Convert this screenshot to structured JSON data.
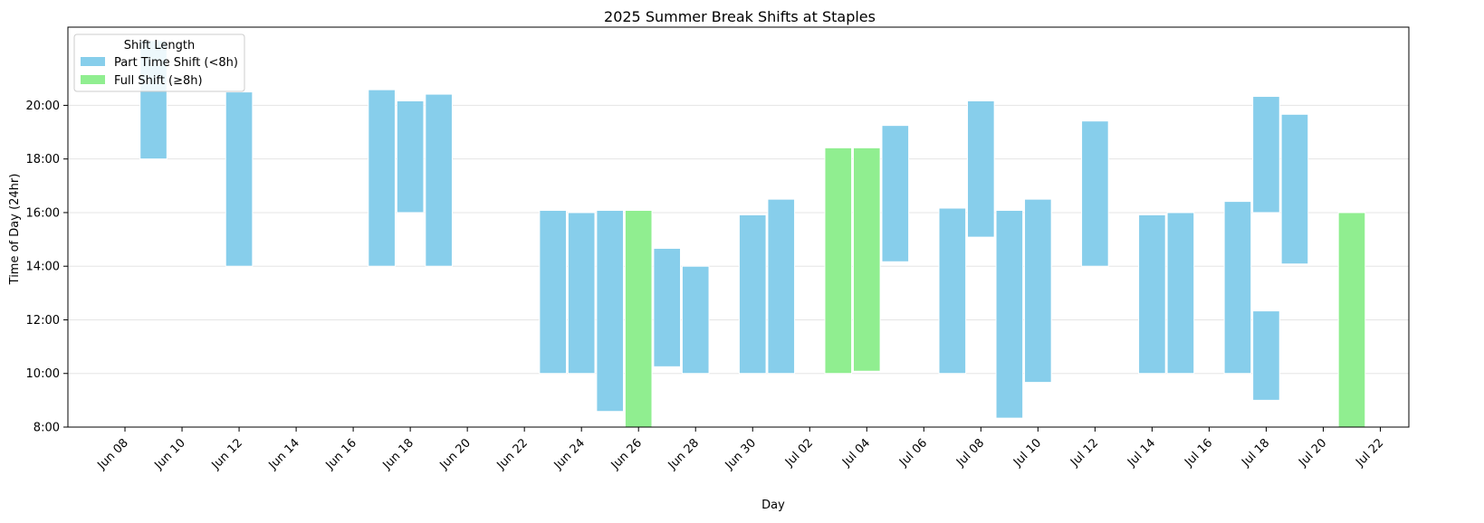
{
  "chart_data": {
    "type": "bar",
    "subtype": "floating-range",
    "title": "2025 Summer Break Shifts at Staples",
    "xlabel": "Day",
    "ylabel": "Time of Day (24hr)",
    "xlim": [
      "2025-06-06",
      "2025-07-23"
    ],
    "ylim": [
      "8:00",
      "22:55"
    ],
    "y_ticks": [
      "8:00",
      "10:00",
      "12:00",
      "14:00",
      "16:00",
      "18:00",
      "20:00"
    ],
    "x_ticks": [
      "Jun 08",
      "Jun 10",
      "Jun 12",
      "Jun 14",
      "Jun 16",
      "Jun 18",
      "Jun 20",
      "Jun 22",
      "Jun 24",
      "Jun 26",
      "Jun 28",
      "Jun 30",
      "Jul 02",
      "Jul 04",
      "Jul 06",
      "Jul 08",
      "Jul 10",
      "Jul 12",
      "Jul 14",
      "Jul 16",
      "Jul 18",
      "Jul 20",
      "Jul 22"
    ],
    "grid": "horizontal",
    "legend": {
      "title": "Shift Length",
      "position": "top-left",
      "entries": [
        {
          "label": "Part Time Shift (<8h)",
          "color": "#87CEEB",
          "category": "part"
        },
        {
          "label": "Full Shift (≥8h)",
          "color": "#90EE90",
          "category": "full"
        }
      ]
    },
    "series": [
      {
        "name": "Part Time Shift (<8h)",
        "category": "part",
        "color": "#87CEEB"
      },
      {
        "name": "Full Shift (≥8h)",
        "category": "full",
        "color": "#90EE90"
      }
    ],
    "shifts": [
      {
        "date": "2025-06-09",
        "start": "18:00",
        "end": "22:25",
        "category": "part"
      },
      {
        "date": "2025-06-12",
        "start": "14:00",
        "end": "20:30",
        "category": "part"
      },
      {
        "date": "2025-06-17",
        "start": "14:00",
        "end": "20:35",
        "category": "part"
      },
      {
        "date": "2025-06-18",
        "start": "16:00",
        "end": "20:10",
        "category": "part"
      },
      {
        "date": "2025-06-19",
        "start": "14:00",
        "end": "20:25",
        "category": "part"
      },
      {
        "date": "2025-06-23",
        "start": "10:00",
        "end": "16:05",
        "category": "part"
      },
      {
        "date": "2025-06-24",
        "start": "10:00",
        "end": "16:00",
        "category": "part"
      },
      {
        "date": "2025-06-25",
        "start": "8:35",
        "end": "16:05",
        "category": "part"
      },
      {
        "date": "2025-06-26",
        "start": "8:00",
        "end": "16:05",
        "category": "full"
      },
      {
        "date": "2025-06-27",
        "start": "10:15",
        "end": "14:40",
        "category": "part"
      },
      {
        "date": "2025-06-28",
        "start": "10:00",
        "end": "14:00",
        "category": "part"
      },
      {
        "date": "2025-06-30",
        "start": "10:00",
        "end": "15:55",
        "category": "part"
      },
      {
        "date": "2025-07-01",
        "start": "10:00",
        "end": "16:30",
        "category": "part"
      },
      {
        "date": "2025-07-03",
        "start": "10:00",
        "end": "18:25",
        "category": "full"
      },
      {
        "date": "2025-07-04",
        "start": "10:05",
        "end": "18:25",
        "category": "full"
      },
      {
        "date": "2025-07-05",
        "start": "14:10",
        "end": "19:15",
        "category": "part"
      },
      {
        "date": "2025-07-07",
        "start": "10:00",
        "end": "16:10",
        "category": "part"
      },
      {
        "date": "2025-07-08",
        "start": "15:05",
        "end": "20:10",
        "category": "part"
      },
      {
        "date": "2025-07-09",
        "start": "8:20",
        "end": "16:05",
        "category": "part"
      },
      {
        "date": "2025-07-10",
        "start": "9:40",
        "end": "16:30",
        "category": "part"
      },
      {
        "date": "2025-07-12",
        "start": "14:00",
        "end": "19:25",
        "category": "part"
      },
      {
        "date": "2025-07-14",
        "start": "10:00",
        "end": "15:55",
        "category": "part"
      },
      {
        "date": "2025-07-15",
        "start": "10:00",
        "end": "16:00",
        "category": "part"
      },
      {
        "date": "2025-07-17",
        "start": "10:00",
        "end": "16:25",
        "category": "part"
      },
      {
        "date": "2025-07-18",
        "start": "9:00",
        "end": "12:20",
        "category": "part"
      },
      {
        "date": "2025-07-18",
        "start": "16:00",
        "end": "20:20",
        "category": "part"
      },
      {
        "date": "2025-07-19",
        "start": "14:05",
        "end": "19:40",
        "category": "part"
      },
      {
        "date": "2025-07-21",
        "start": "8:00",
        "end": "16:00",
        "category": "full"
      }
    ]
  }
}
